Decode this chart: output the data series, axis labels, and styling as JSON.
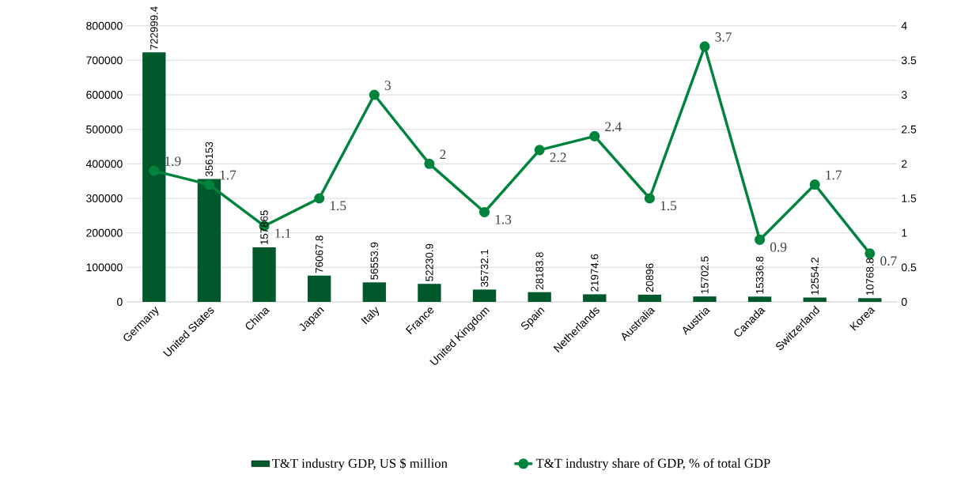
{
  "chart_data": {
    "type": "bar",
    "categories": [
      "Germany",
      "United States",
      "China",
      "Japan",
      "Italy",
      "France",
      "United Kingdom",
      "Spain",
      "Netherlands",
      "Australia",
      "Austria",
      "Canada",
      "Switzerland",
      "Korea"
    ],
    "series": [
      {
        "name": "T&T industry GDP, US $ million",
        "color": "#00592b",
        "values": [
          722999.4,
          356153,
          157865,
          76067.8,
          56553.9,
          52230.9,
          35732.1,
          28183.8,
          21974.6,
          20896,
          15702.5,
          15336.8,
          12554.2,
          10768.8
        ]
      },
      {
        "name": "T&T industry share of GDP, % of total GDP",
        "type": "line",
        "axis": "y2",
        "color": "#00843d",
        "values": [
          1.9,
          1.7,
          1.1,
          1.5,
          3,
          2,
          1.3,
          2.2,
          2.4,
          1.5,
          3.7,
          0.9,
          1.7,
          0.7
        ]
      }
    ],
    "ylim": [
      0,
      800000
    ],
    "yticks": [
      0,
      100000,
      200000,
      300000,
      400000,
      500000,
      600000,
      700000,
      800000
    ],
    "y2lim": [
      0,
      4
    ],
    "y2ticks": [
      0,
      0.5,
      1,
      1.5,
      2,
      2.5,
      3,
      3.5,
      4
    ],
    "grid": "y",
    "legend": "bottom",
    "data_labels": true,
    "marker": "circle",
    "line_style": "solid"
  }
}
